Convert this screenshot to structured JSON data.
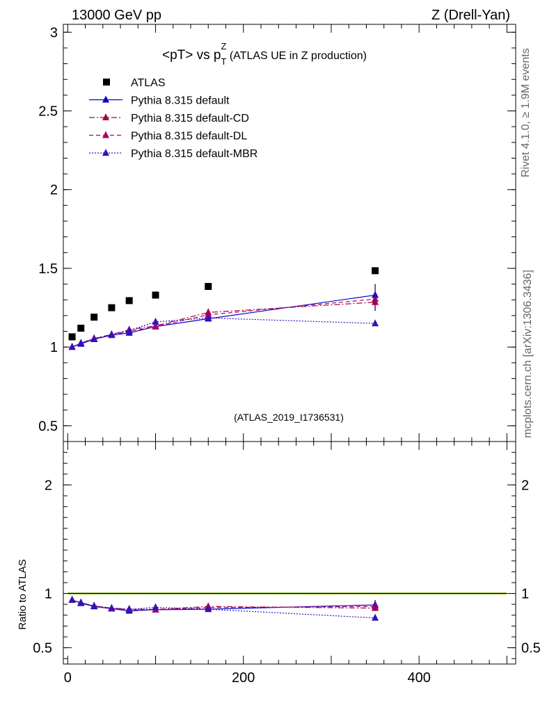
{
  "header": {
    "left": "13000 GeV pp",
    "right": "Z (Drell-Yan)"
  },
  "title": {
    "main": "<pT> vs p",
    "sub": "T",
    "sup": "Z",
    "rest": " (ATLAS UE in Z production)"
  },
  "side_labels": {
    "rivet": "Rivet 4.1.0, ≥ 1.9M events",
    "mcplots": "mcplots.cern.ch [arXiv:1306.3436]"
  },
  "analysis_tag": "(ATLAS_2019_I1736531)",
  "ratio_ylabel": "Ratio to ATLAS",
  "legend": [
    {
      "label": "ATLAS",
      "color": "#000000",
      "style": "marker"
    },
    {
      "label": "Pythia 8.315 default",
      "color": "#0000cc",
      "style": "solid"
    },
    {
      "label": "Pythia 8.315 default-CD",
      "color": "#aa0044",
      "style": "dashdot"
    },
    {
      "label": "Pythia 8.315 default-DL",
      "color": "#aa0066",
      "style": "dashed"
    },
    {
      "label": "Pythia 8.315 default-MBR",
      "color": "#3311bb",
      "style": "dotted"
    }
  ],
  "chart_data": [
    {
      "type": "scatter",
      "panel": "main",
      "xlim": [
        -5,
        510
      ],
      "ylim": [
        0.4,
        3.05
      ],
      "yticks": [
        "0.5",
        "1",
        "1.5",
        "2",
        "2.5",
        "3"
      ],
      "ytick_values": [
        0.5,
        1,
        1.5,
        2,
        2.5,
        3
      ],
      "x": [
        5,
        15,
        30,
        50,
        70,
        100,
        160,
        350
      ],
      "series": [
        {
          "name": "ATLAS",
          "values": [
            1.065,
            1.12,
            1.19,
            1.25,
            1.295,
            1.33,
            1.385,
            1.485
          ]
        },
        {
          "name": "Pythia 8.315 default",
          "values": [
            1.0,
            1.02,
            1.05,
            1.075,
            1.09,
            1.13,
            1.18,
            1.33
          ]
        },
        {
          "name": "Pythia 8.315 default-CD",
          "values": [
            1.0,
            1.025,
            1.055,
            1.08,
            1.11,
            1.135,
            1.22,
            1.285
          ]
        },
        {
          "name": "Pythia 8.315 default-DL",
          "values": [
            1.0,
            1.025,
            1.055,
            1.075,
            1.1,
            1.13,
            1.205,
            1.305
          ]
        },
        {
          "name": "Pythia 8.315 default-MBR",
          "values": [
            1.0,
            1.025,
            1.05,
            1.08,
            1.105,
            1.16,
            1.185,
            1.15
          ]
        }
      ]
    },
    {
      "type": "scatter",
      "panel": "ratio",
      "ylabel": "Ratio to ATLAS",
      "xlim": [
        -5,
        510
      ],
      "ylim": [
        0.35,
        2.4
      ],
      "xticks": [
        "0",
        "200",
        "400"
      ],
      "xtick_values": [
        0,
        200,
        400
      ],
      "yticks": [
        "0.5",
        "1",
        "2"
      ],
      "ytick_values": [
        0.5,
        1,
        2
      ],
      "x": [
        5,
        15,
        30,
        50,
        70,
        100,
        160,
        350
      ],
      "series": [
        {
          "name": "Pythia 8.315 default",
          "values": [
            0.94,
            0.91,
            0.88,
            0.86,
            0.84,
            0.85,
            0.855,
            0.895
          ]
        },
        {
          "name": "Pythia 8.315 default-CD",
          "values": [
            0.94,
            0.915,
            0.885,
            0.865,
            0.857,
            0.853,
            0.88,
            0.865
          ]
        },
        {
          "name": "Pythia 8.315 default-DL",
          "values": [
            0.94,
            0.915,
            0.885,
            0.86,
            0.85,
            0.85,
            0.87,
            0.88
          ]
        },
        {
          "name": "Pythia 8.315 default-MBR",
          "values": [
            0.94,
            0.915,
            0.885,
            0.865,
            0.853,
            0.872,
            0.855,
            0.775
          ]
        }
      ]
    }
  ]
}
